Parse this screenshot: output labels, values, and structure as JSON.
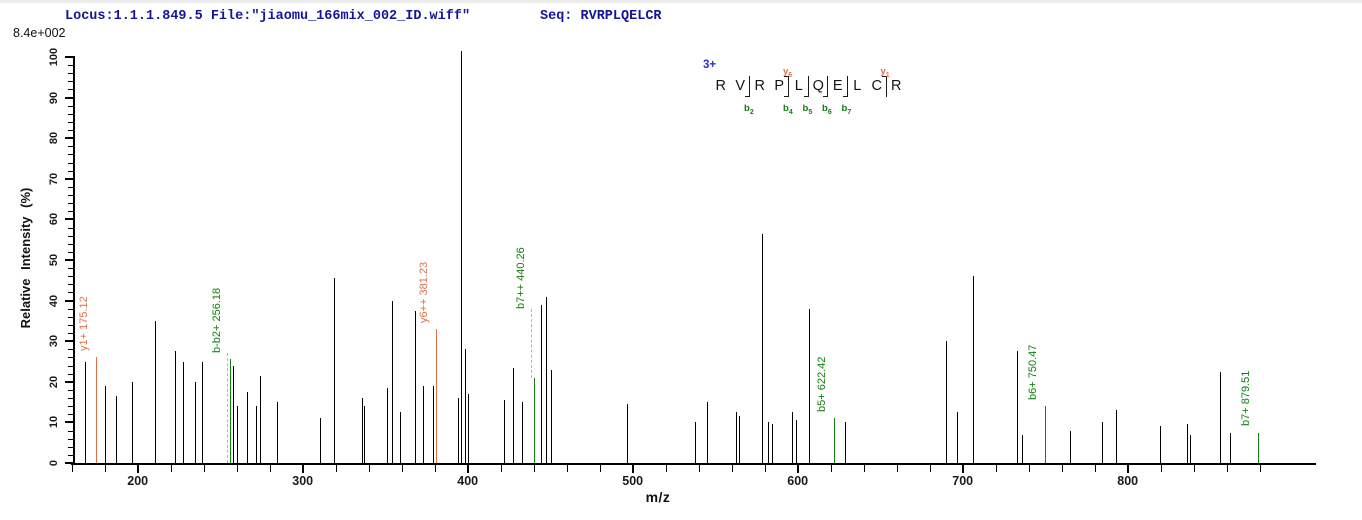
{
  "header": {
    "locus_file": "Locus:1.1.1.849.5 File:\"jiaomu_166mix_002_ID.wiff\"",
    "seq": "Seq: RVRPLQELCR"
  },
  "max_intensity_label": "8.4e+002",
  "annotation": {
    "charge": "3+",
    "residues": [
      {
        "aa": "R"
      },
      {
        "aa": "V"
      },
      {
        "aa": "R",
        "b": "b2"
      },
      {
        "aa": "P"
      },
      {
        "aa": "L",
        "b": "b4",
        "y": "y6"
      },
      {
        "aa": "Q",
        "b": "b5"
      },
      {
        "aa": "E",
        "b": "b6"
      },
      {
        "aa": "L",
        "b": "b7"
      },
      {
        "aa": "C"
      },
      {
        "aa": "R",
        "y": "y1"
      }
    ]
  },
  "chart_data": {
    "type": "bar",
    "subtype": "mass-spectrum-stick-plot",
    "xlabel": "m/z",
    "ylabel": "Relative Intensity (%)",
    "xlim": [
      162,
      912
    ],
    "ylim": [
      0,
      100
    ],
    "x_major_ticks": [
      200,
      300,
      400,
      500,
      600,
      700,
      800
    ],
    "x_minor_tick_step": 20,
    "y_major_tick_step": 10,
    "y_minor_tick_step": 2,
    "grid": false,
    "legend": false,
    "colors": {
      "peak_default": "#000000",
      "y_ion": "#E0714A",
      "b_ion": "#118011",
      "label_connector": "#A3BFA3",
      "header_text": "#15159B",
      "charge_text": "#2B2BE0"
    },
    "peaks": [
      {
        "mz": 168.5,
        "pct": 25
      },
      {
        "mz": 175.12,
        "pct": 26,
        "ion": "y",
        "label": "y1+ 175.12",
        "label_pct": 27.5
      },
      {
        "mz": 180.2,
        "pct": 19
      },
      {
        "mz": 187,
        "pct": 16.5
      },
      {
        "mz": 197,
        "pct": 20
      },
      {
        "mz": 211,
        "pct": 35
      },
      {
        "mz": 223,
        "pct": 27.5
      },
      {
        "mz": 228,
        "pct": 25
      },
      {
        "mz": 235,
        "pct": 20
      },
      {
        "mz": 239.5,
        "pct": 25
      },
      {
        "mz": 256.18,
        "pct": 25.5,
        "ion": "b",
        "label": "b-b2+ 256.18",
        "label_pct": 27,
        "dash_from": 0
      },
      {
        "mz": 258,
        "pct": 24
      },
      {
        "mz": 260.5,
        "pct": 14
      },
      {
        "mz": 266.5,
        "pct": 17.5
      },
      {
        "mz": 272,
        "pct": 14
      },
      {
        "mz": 274.5,
        "pct": 21.5
      },
      {
        "mz": 284.5,
        "pct": 15
      },
      {
        "mz": 311,
        "pct": 11
      },
      {
        "mz": 319,
        "pct": 45.5
      },
      {
        "mz": 336,
        "pct": 16
      },
      {
        "mz": 337.5,
        "pct": 14
      },
      {
        "mz": 351.5,
        "pct": 18.5
      },
      {
        "mz": 354.5,
        "pct": 40
      },
      {
        "mz": 359,
        "pct": 12.5
      },
      {
        "mz": 368.5,
        "pct": 37.5
      },
      {
        "mz": 373,
        "pct": 19
      },
      {
        "mz": 379.5,
        "pct": 19
      },
      {
        "mz": 381.23,
        "pct": 33,
        "ion": "y",
        "label": "y6++ 381.23",
        "label_pct": 34.5
      },
      {
        "mz": 394.5,
        "pct": 16
      },
      {
        "mz": 396.2,
        "pct": 101.5
      },
      {
        "mz": 398.5,
        "pct": 28
      },
      {
        "mz": 400.5,
        "pct": 17
      },
      {
        "mz": 422.5,
        "pct": 15.5
      },
      {
        "mz": 428,
        "pct": 23.5
      },
      {
        "mz": 433.5,
        "pct": 15
      },
      {
        "mz": 440.26,
        "pct": 21,
        "ion": "b",
        "label": "b7++ 440.26",
        "label_pct": 38,
        "dash_from": 21
      },
      {
        "mz": 445,
        "pct": 39
      },
      {
        "mz": 447.8,
        "pct": 41
      },
      {
        "mz": 451,
        "pct": 23
      },
      {
        "mz": 497,
        "pct": 14.5
      },
      {
        "mz": 538,
        "pct": 10
      },
      {
        "mz": 545.5,
        "pct": 15
      },
      {
        "mz": 563,
        "pct": 12.5
      },
      {
        "mz": 565,
        "pct": 11.5
      },
      {
        "mz": 578.5,
        "pct": 56.5
      },
      {
        "mz": 582.5,
        "pct": 10
      },
      {
        "mz": 584.5,
        "pct": 9.5
      },
      {
        "mz": 597,
        "pct": 12.5
      },
      {
        "mz": 599,
        "pct": 10.5
      },
      {
        "mz": 607,
        "pct": 38
      },
      {
        "mz": 622.42,
        "pct": 11,
        "ion": "b",
        "label": "b5+ 622.42",
        "label_pct": 12.5
      },
      {
        "mz": 629,
        "pct": 10
      },
      {
        "mz": 690,
        "pct": 30
      },
      {
        "mz": 697,
        "pct": 12.5
      },
      {
        "mz": 706.5,
        "pct": 46
      },
      {
        "mz": 733.5,
        "pct": 27.5
      },
      {
        "mz": 736,
        "pct": 7
      },
      {
        "mz": 750.47,
        "pct": 14,
        "ion": "b",
        "label": "b6+ 750.47",
        "label_pct": 15.5
      },
      {
        "mz": 765.5,
        "pct": 8
      },
      {
        "mz": 785,
        "pct": 10
      },
      {
        "mz": 793,
        "pct": 13
      },
      {
        "mz": 820,
        "pct": 9
      },
      {
        "mz": 836,
        "pct": 9.5
      },
      {
        "mz": 838,
        "pct": 7
      },
      {
        "mz": 856,
        "pct": 22.5
      },
      {
        "mz": 862,
        "pct": 7.5
      },
      {
        "mz": 879.51,
        "pct": 7.5,
        "ion": "b",
        "label": "b7+ 879.51",
        "label_pct": 9
      }
    ]
  }
}
